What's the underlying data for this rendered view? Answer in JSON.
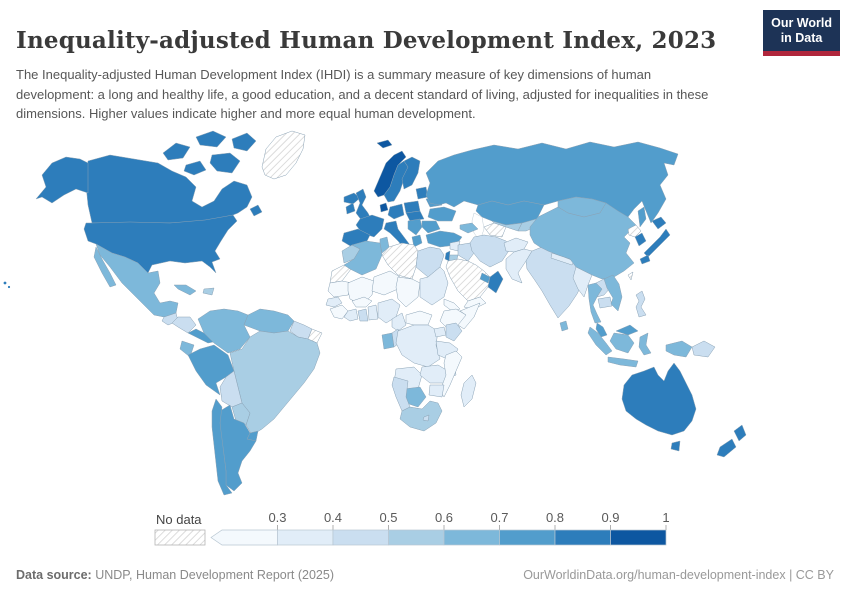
{
  "header": {
    "title": "Inequality-adjusted Human Development Index, 2023",
    "subtitle": "The Inequality-adjusted Human Development Index (IHDI) is a summary measure of key dimensions of human development: a long and healthy life, a good education, and a decent standard of living, adjusted for inequalities in these dimensions. Higher values indicate higher and more equal human development.",
    "logo": {
      "line1": "Our World",
      "line2": "in Data",
      "navy": "#1d3356",
      "red": "#b0263c"
    }
  },
  "legend": {
    "no_data_label": "No data",
    "tick_labels": [
      "0.3",
      "0.4",
      "0.5",
      "0.6",
      "0.7",
      "0.8",
      "0.9",
      "1"
    ],
    "bin_colors": [
      "#f4f9fd",
      "#e1edf8",
      "#cadef0",
      "#a9cee4",
      "#7db8da",
      "#529dcc",
      "#2d7dbb",
      "#0d57a1"
    ],
    "hatch_color": "#cdcdcd"
  },
  "footer": {
    "source_label": "Data source:",
    "source_text": " UNDP, Human Development Report (2025)",
    "right_text": "OurWorldinData.org/human-development-index | CC BY"
  },
  "chart_data": {
    "type": "choropleth",
    "title": "Inequality-adjusted Human Development Index, 2023",
    "year": 2023,
    "value_range": [
      0,
      1
    ],
    "legend_position": "bottom",
    "bin_ranges": [
      "<0.3",
      "0.3-0.4",
      "0.4-0.5",
      "0.5-0.6",
      "0.6-0.7",
      "0.7-0.8",
      "0.8-0.9",
      "0.9-1"
    ],
    "no_data_style": "hatched",
    "countries": {
      "greenland": "no-data",
      "canada": 6,
      "usa": 6,
      "mexico": 4,
      "guatemala": 2,
      "honduras-nicaragua": 2,
      "costa-rica-panama": 5,
      "cuba": 4,
      "hispaniola": 3,
      "colombia": 4,
      "venezuela": 4,
      "guyana-suriname": 2,
      "french-guiana": "no-data",
      "ecuador": 4,
      "peru": 5,
      "brazil": 3,
      "bolivia": 2,
      "paraguay": 3,
      "uruguay": 5,
      "argentina": 5,
      "chile": 5,
      "iceland": 6,
      "norway": 7,
      "sweden": 6,
      "finland": 6,
      "denmark": 7,
      "united-kingdom": 6,
      "ireland": 6,
      "baltics": 6,
      "belarus": 5,
      "poland": 6,
      "germany": 6,
      "france": 6,
      "iberia": 6,
      "italy": 6,
      "czech-hungary": 6,
      "balkans": 5,
      "greece": 5,
      "romania-bulgaria": 5,
      "ukraine": 5,
      "russia": 5,
      "kazakhstan": 5,
      "turkmenistan": "no-data",
      "uzbekistan": 3,
      "kyrgyz-tajik": 3,
      "caucasus": 4,
      "turkey": 5,
      "syria": 1,
      "israel": 6,
      "jordan": 3,
      "iraq": 2,
      "iran": 2,
      "afghanistan": 1,
      "pakistan": 1,
      "saudi-arabia": "no-data",
      "yemen": 0,
      "oman": 6,
      "uae": 5,
      "india": 2,
      "nepal": 1,
      "bangladesh": 2,
      "sri-lanka": 4,
      "mongolia": 4,
      "china": 4,
      "north-korea": "no-data",
      "south-korea": 6,
      "japan": 6,
      "taiwan": "no-data",
      "myanmar": 1,
      "thailand": 4,
      "laos": 2,
      "cambodia": 2,
      "vietnam": 4,
      "malaysia": 5,
      "philippines": 2,
      "indonesia": 4,
      "papua-new-guinea": 2,
      "australia": 6,
      "new-zealand": 6,
      "morocco": 3,
      "western-sahara": "no-data",
      "algeria": 4,
      "tunisia": 4,
      "libya": "no-data",
      "egypt": 2,
      "mauritania": 0,
      "mali": 0,
      "niger": 0,
      "chad": 0,
      "sudan": 1,
      "eritrea-djibouti": 0,
      "ethiopia": 0,
      "somalia": 0,
      "senegal": 1,
      "guinea-group": 0,
      "cote-divoire": 1,
      "ghana": 2,
      "togo-benin": 1,
      "burkina-faso": 0,
      "nigeria": 1,
      "cameroon": 1,
      "central-african-republic": 0,
      "gabon": 4,
      "congo": 2,
      "drc": 1,
      "uganda": 1,
      "kenya": 2,
      "tanzania": 1,
      "angola": 1,
      "zambia": 1,
      "malawi": 1,
      "mozambique": 0,
      "zimbabwe": 1,
      "botswana": 4,
      "namibia": 2,
      "south-africa": 3,
      "lesotho": 2,
      "madagascar": 1
    }
  }
}
